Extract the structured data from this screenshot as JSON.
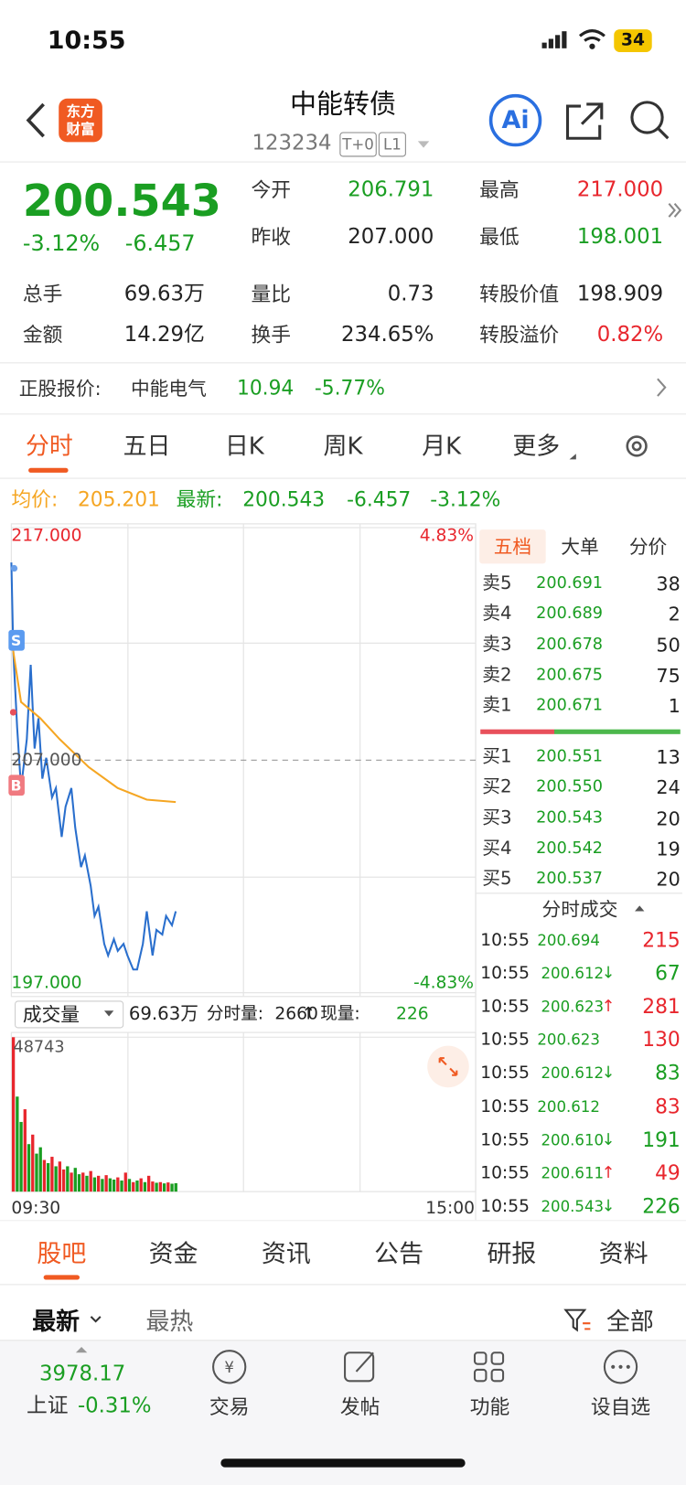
{
  "status": {
    "time": "10:55",
    "battery": "34"
  },
  "header": {
    "logo": [
      "东方",
      "财富"
    ],
    "title": "中能转债",
    "code": "123234",
    "tags": [
      "T+0",
      "L1"
    ],
    "ai": "Ai"
  },
  "quote": {
    "price": "200.543",
    "change_pct": "-3.12%",
    "change": "-6.457",
    "stats": [
      {
        "label": "今开",
        "value": "206.791",
        "color": "#1a9e22"
      },
      {
        "label": "最高",
        "value": "217.000",
        "color": "#e8262d"
      },
      {
        "label": "昨收",
        "value": "207.000",
        "color": "#222"
      },
      {
        "label": "最低",
        "value": "198.001",
        "color": "#1a9e22"
      },
      {
        "label": "总手",
        "value": "69.63万",
        "color": "#222"
      },
      {
        "label": "量比",
        "value": "0.73",
        "color": "#222"
      },
      {
        "label": "转股价值",
        "value": "198.909",
        "color": "#222"
      },
      {
        "label": "金额",
        "value": "14.29亿",
        "color": "#222"
      },
      {
        "label": "换手",
        "value": "234.65%",
        "color": "#222"
      },
      {
        "label": "转股溢价",
        "value": "0.82%",
        "color": "#e8262d"
      }
    ]
  },
  "underlying": {
    "label": "正股报价:",
    "name": "中能电气",
    "price": "10.94",
    "pct": "-5.77%"
  },
  "tabs": [
    "分时",
    "五日",
    "日K",
    "周K",
    "月K",
    "更多"
  ],
  "chart_header": {
    "avg_label": "均价:",
    "avg": "205.201",
    "latest_label": "最新:",
    "latest": "200.543",
    "change": "-6.457",
    "pct": "-3.12%"
  },
  "chart_data": [
    {
      "type": "line",
      "ylim": [
        197,
        217
      ],
      "yticks": [
        {
          "value": 217,
          "label": "217.000"
        },
        {
          "value": 207,
          "label": "207.000"
        },
        {
          "value": 197,
          "label": "197.000"
        }
      ],
      "pct_labels": [
        "4.83%",
        "-4.83%"
      ],
      "xlim": [
        0,
        240
      ],
      "xticks": [
        {
          "value": 0,
          "label": "09:30"
        },
        {
          "value": 240,
          "label": "15:00"
        }
      ],
      "markers": [
        "S",
        "B"
      ],
      "series": [
        {
          "name": "价格",
          "color": "#2a6fcd",
          "x": [
            0,
            1,
            3,
            5,
            8,
            10,
            12,
            14,
            16,
            18,
            21,
            23,
            26,
            28,
            31,
            33,
            36,
            38,
            41,
            43,
            45,
            48,
            50,
            53,
            55,
            58,
            60,
            63,
            65,
            68,
            70,
            73,
            75,
            78,
            80,
            83,
            85
          ],
          "values": [
            215.5,
            211.7,
            208.4,
            205.8,
            207.9,
            211.1,
            207.5,
            208.8,
            206.2,
            207.1,
            205.4,
            205.8,
            203.7,
            205.0,
            205.8,
            204.1,
            202.4,
            202.9,
            201.6,
            200.3,
            200.7,
            199.1,
            198.6,
            199.3,
            198.8,
            199.1,
            198.6,
            198.0,
            198.0,
            199.1,
            200.5,
            198.6,
            199.7,
            199.5,
            200.3,
            199.9,
            200.5
          ]
        },
        {
          "name": "均价",
          "color": "#f5a623",
          "x": [
            0,
            5,
            15,
            25,
            40,
            55,
            70,
            85
          ],
          "values": [
            212.2,
            209.5,
            208.8,
            207.9,
            206.7,
            205.8,
            205.3,
            205.2
          ]
        }
      ]
    },
    {
      "type": "bar",
      "label": "成交量",
      "total": "69.63万",
      "min_vol_label": "分时量:",
      "min_vol": "2660",
      "arrow": "↑",
      "now_label": "现量:",
      "now": "226",
      "ylim": [
        0,
        48743
      ],
      "yticks": [
        48743
      ],
      "xlim": [
        0,
        240
      ],
      "x": [
        0,
        2,
        4,
        6,
        8,
        10,
        12,
        14,
        16,
        18,
        20,
        22,
        24,
        26,
        28,
        30,
        32,
        34,
        36,
        38,
        40,
        42,
        44,
        46,
        48,
        50,
        52,
        54,
        56,
        58,
        60,
        62,
        64,
        66,
        68,
        70,
        72,
        74,
        76,
        78,
        80,
        82,
        84
      ],
      "values": [
        48743,
        30000,
        22000,
        26000,
        15000,
        18000,
        12000,
        14000,
        10000,
        9000,
        11000,
        8000,
        9500,
        7000,
        8000,
        6000,
        7500,
        5500,
        6000,
        5000,
        6500,
        4500,
        5000,
        4000,
        5200,
        4200,
        3800,
        4500,
        3500,
        6000,
        4000,
        3000,
        3500,
        4200,
        3000,
        5000,
        3200,
        2800,
        3000,
        2600,
        2900,
        2500,
        2660
      ],
      "colors": [
        "#e8262d",
        "#1a9e22",
        "#1a9e22",
        "#e8262d",
        "#1a9e22",
        "#e8262d",
        "#1a9e22",
        "#1a9e22",
        "#e8262d",
        "#1a9e22",
        "#e8262d",
        "#1a9e22",
        "#e8262d",
        "#e8262d",
        "#1a9e22",
        "#e8262d",
        "#1a9e22",
        "#1a9e22",
        "#e8262d",
        "#1a9e22",
        "#e8262d",
        "#1a9e22",
        "#e8262d",
        "#1a9e22",
        "#e8262d",
        "#1a9e22",
        "#1a9e22",
        "#e8262d",
        "#1a9e22",
        "#e8262d",
        "#1a9e22",
        "#e8262d",
        "#1a9e22",
        "#e8262d",
        "#1a9e22",
        "#e8262d",
        "#e8262d",
        "#1a9e22",
        "#e8262d",
        "#1a9e22",
        "#e8262d",
        "#1a9e22",
        "#1a9e22"
      ]
    }
  ],
  "order_book": {
    "tabs": [
      "五档",
      "大单",
      "分价"
    ],
    "asks": [
      [
        "卖5",
        "200.691",
        "38"
      ],
      [
        "卖4",
        "200.689",
        "2"
      ],
      [
        "卖3",
        "200.678",
        "50"
      ],
      [
        "卖2",
        "200.675",
        "75"
      ],
      [
        "卖1",
        "200.671",
        "1"
      ]
    ],
    "bids": [
      [
        "买1",
        "200.551",
        "13"
      ],
      [
        "买2",
        "200.550",
        "24"
      ],
      [
        "买3",
        "200.543",
        "20"
      ],
      [
        "买4",
        "200.542",
        "19"
      ],
      [
        "买5",
        "200.537",
        "20"
      ]
    ]
  },
  "trades": {
    "title": "分时成交",
    "rows": [
      {
        "time": "10:55",
        "price": "200.694",
        "vol": "215",
        "color": "#e8262d"
      },
      {
        "time": "10:55",
        "price": "200.612",
        "arrow": "↓",
        "vol": "67",
        "color": "#1a9e22"
      },
      {
        "time": "10:55",
        "price": "200.623",
        "arrow": "↑",
        "vol": "281",
        "color": "#e8262d"
      },
      {
        "time": "10:55",
        "price": "200.623",
        "vol": "130",
        "color": "#e8262d"
      },
      {
        "time": "10:55",
        "price": "200.612",
        "arrow": "↓",
        "vol": "83",
        "color": "#1a9e22"
      },
      {
        "time": "10:55",
        "price": "200.612",
        "vol": "83",
        "color": "#e8262d"
      },
      {
        "time": "10:55",
        "price": "200.610",
        "arrow": "↓",
        "vol": "191",
        "color": "#1a9e22"
      },
      {
        "time": "10:55",
        "price": "200.611",
        "arrow": "↑",
        "vol": "49",
        "color": "#e8262d"
      },
      {
        "time": "10:55",
        "price": "200.543",
        "arrow": "↓",
        "vol": "226",
        "color": "#1a9e22"
      }
    ]
  },
  "bottom_tabs": [
    "股吧",
    "资金",
    "资讯",
    "公告",
    "研报",
    "资料"
  ],
  "sort": [
    "最新",
    "最热"
  ],
  "filter": "全部",
  "nav": {
    "index_value": "3978.17",
    "index_name": "上证",
    "index_pct": "-0.31%",
    "items": [
      "交易",
      "发帖",
      "功能",
      "设自选"
    ]
  }
}
